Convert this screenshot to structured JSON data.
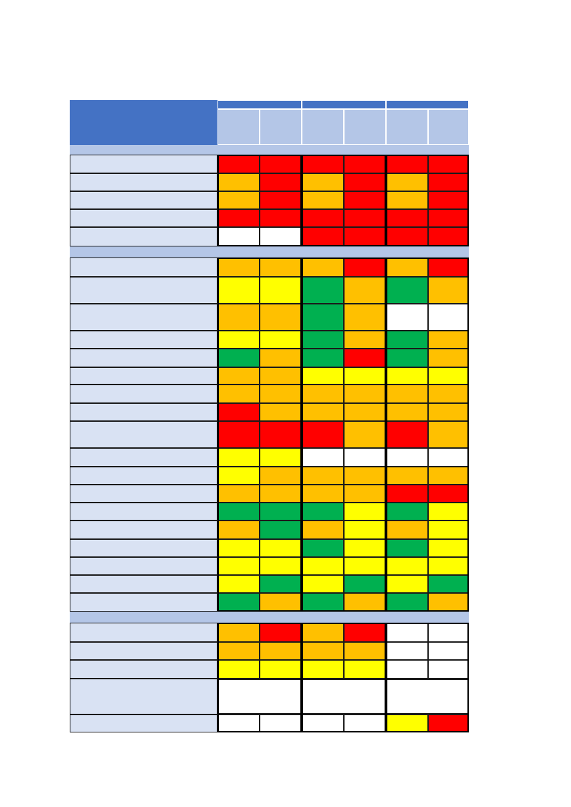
{
  "legend_colors": {
    "r": "#ff0000",
    "o": "#ffc000",
    "y": "#ffff00",
    "g": "#00b050",
    "w": "#ffffff"
  },
  "header": {
    "main_color": "#4472c4",
    "sub_color": "#b4c6e7",
    "label_color": "#d9e2f3",
    "groups": 3,
    "subcolumns_per_group": 2
  },
  "sections": [
    {
      "rows": [
        [
          "r",
          "r",
          "r",
          "r",
          "r",
          "r"
        ],
        [
          "o",
          "r",
          "o",
          "r",
          "o",
          "r"
        ],
        [
          "o",
          "r",
          "o",
          "r",
          "o",
          "r"
        ],
        [
          "r",
          "r",
          "r",
          "r",
          "r",
          "r"
        ],
        [
          "w",
          "w",
          "r",
          "r",
          "r",
          "r"
        ]
      ]
    },
    {
      "rows": [
        [
          "o",
          "o",
          "o",
          "r",
          "o",
          "r"
        ],
        [
          "y",
          "y",
          "g",
          "o",
          "g",
          "o"
        ],
        [
          "o",
          "o",
          "g",
          "o",
          "w",
          "w"
        ],
        [
          "y",
          "y",
          "g",
          "o",
          "g",
          "o"
        ],
        [
          "g",
          "o",
          "g",
          "r",
          "g",
          "o"
        ],
        [
          "o",
          "o",
          "y",
          "y",
          "y",
          "y"
        ],
        [
          "o",
          "o",
          "o",
          "o",
          "o",
          "o"
        ],
        [
          "r",
          "o",
          "o",
          "o",
          "o",
          "o"
        ],
        [
          "r",
          "r",
          "r",
          "o",
          "r",
          "o"
        ],
        [
          "y",
          "y",
          "w",
          "w",
          "w",
          "w"
        ],
        [
          "y",
          "o",
          "o",
          "o",
          "o",
          "o"
        ],
        [
          "o",
          "o",
          "o",
          "o",
          "r",
          "r"
        ],
        [
          "g",
          "g",
          "g",
          "y",
          "g",
          "y"
        ],
        [
          "o",
          "g",
          "o",
          "y",
          "o",
          "y"
        ],
        [
          "y",
          "y",
          "g",
          "y",
          "g",
          "y"
        ],
        [
          "y",
          "y",
          "y",
          "y",
          "y",
          "y"
        ],
        [
          "y",
          "g",
          "y",
          "g",
          "y",
          "g"
        ],
        [
          "g",
          "o",
          "g",
          "o",
          "g",
          "o"
        ]
      ]
    },
    {
      "rows": [
        [
          "o",
          "r",
          "o",
          "r",
          "w",
          "w"
        ],
        [
          "o",
          "o",
          "o",
          "o",
          "w",
          "w"
        ],
        [
          "y",
          "y",
          "y",
          "y",
          "w",
          "w"
        ],
        [
          "merged"
        ],
        [
          "w",
          "w",
          "w",
          "w",
          "y",
          "r"
        ]
      ]
    }
  ]
}
